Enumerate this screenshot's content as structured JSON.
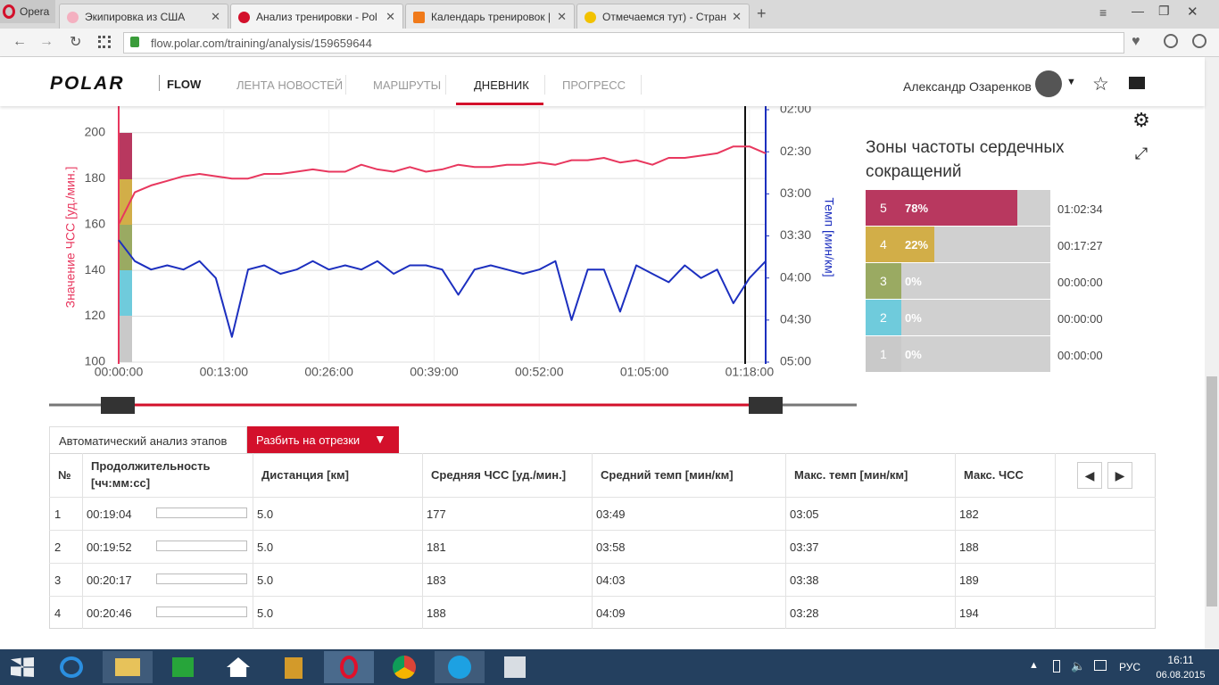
{
  "browser": {
    "menu": "Opera",
    "tabs": [
      "Экипировка из США",
      "Анализ тренировки - Pol",
      "Календарь тренировок |",
      "Отмечаемся тут) - Стран"
    ],
    "url": "flow.polar.com/training/analysis/159659644"
  },
  "nav": {
    "logo": "POLAR",
    "product": "FLOW",
    "items": [
      "ЛЕНТА НОВОСТЕЙ",
      "МАРШРУТЫ",
      "ДНЕВНИК",
      "ПРОГРЕСС"
    ],
    "user": "Александр Озаренков"
  },
  "chart_data": {
    "type": "line",
    "ylabel": "Значение ЧСС [уд./мин.]",
    "y2label": "Темп [мин/км]",
    "x": [
      0,
      2,
      4,
      6,
      8,
      10,
      12,
      14,
      16,
      18,
      20,
      22,
      24,
      26,
      28,
      30,
      32,
      34,
      36,
      38,
      40,
      42,
      44,
      46,
      48,
      50,
      52,
      54,
      56,
      58,
      60,
      62,
      64,
      66,
      68,
      70,
      72,
      74,
      76,
      78,
      80
    ],
    "series": [
      {
        "color": "#e8375e",
        "values": [
          160,
          174,
          177,
          179,
          181,
          182,
          181,
          180,
          180,
          182,
          182,
          183,
          184,
          183,
          183,
          186,
          184,
          183,
          185,
          183,
          184,
          186,
          185,
          185,
          186,
          186,
          187,
          186,
          188,
          188,
          189,
          187,
          188,
          186,
          189,
          189,
          190,
          191,
          194,
          194,
          191
        ]
      },
      {
        "color": "#1c2fbf",
        "axis": "y2",
        "values": [
          3.55,
          3.8,
          3.9,
          3.85,
          3.9,
          3.8,
          4.0,
          4.7,
          3.9,
          3.85,
          3.95,
          3.9,
          3.8,
          3.9,
          3.85,
          3.9,
          3.8,
          3.95,
          3.85,
          3.85,
          3.9,
          4.2,
          3.9,
          3.85,
          3.9,
          3.95,
          3.9,
          3.8,
          4.5,
          3.9,
          3.9,
          4.4,
          3.85,
          3.95,
          4.05,
          3.85,
          4.0,
          3.9,
          4.3,
          4.0,
          3.8
        ]
      }
    ],
    "xlim": [
      0,
      80
    ],
    "xticks": [
      {
        "value": 0,
        "label": "00:00:00"
      },
      {
        "value": 13,
        "label": "00:13:00"
      },
      {
        "value": 26,
        "label": "00:26:00"
      },
      {
        "value": 39,
        "label": "00:39:00"
      },
      {
        "value": 52,
        "label": "00:52:00"
      },
      {
        "value": 65,
        "label": "01:05:00"
      },
      {
        "value": 78,
        "label": "01:18:00"
      }
    ],
    "ylim": [
      100,
      210
    ],
    "yticks": [
      100,
      120,
      140,
      160,
      180,
      200
    ],
    "y2lim": [
      2,
      5
    ],
    "y2_inverted": true,
    "y2ticks": [
      {
        "value": 2,
        "label": "02:00"
      },
      {
        "value": 2.5,
        "label": "02:30"
      },
      {
        "value": 3,
        "label": "03:00"
      },
      {
        "value": 3.5,
        "label": "03:30"
      },
      {
        "value": 4,
        "label": "04:00"
      },
      {
        "value": 4.5,
        "label": "04:30"
      },
      {
        "value": 5,
        "label": "05:00"
      }
    ],
    "grid": true
  },
  "zones": {
    "title": "Зоны частоты сердечных сокращений",
    "rows": [
      {
        "zone": "5",
        "percent": 78,
        "percent_label": "78%",
        "time": "01:02:34",
        "color": "#b8385f"
      },
      {
        "zone": "4",
        "percent": 22,
        "percent_label": "22%",
        "time": "00:17:27",
        "color": "#d2ae48"
      },
      {
        "zone": "3",
        "percent": 0,
        "percent_label": "0%",
        "time": "00:00:00",
        "color": "#9aaa62"
      },
      {
        "zone": "2",
        "percent": 0,
        "percent_label": "0%",
        "time": "00:00:00",
        "color": "#6fcbdc"
      },
      {
        "zone": "1",
        "percent": 0,
        "percent_label": "0%",
        "time": "00:00:00",
        "color": "#c9c9c9"
      }
    ]
  },
  "laps": {
    "tabs": [
      "Автоматический анализ этапов",
      "Разбить на отрезки"
    ],
    "headers": [
      "№",
      "Продолжительность [чч:мм:сс]",
      "Дистанция [км]",
      "Средняя ЧСС [уд./мин.]",
      "Средний темп [мин/км]",
      "Макс. темп [мин/км]",
      "Макс. ЧСС"
    ],
    "rows": [
      [
        "1",
        "00:19:04",
        "5.0",
        "177",
        "03:49",
        "03:05",
        "182"
      ],
      [
        "2",
        "00:19:52",
        "5.0",
        "181",
        "03:58",
        "03:37",
        "188"
      ],
      [
        "3",
        "00:20:17",
        "5.0",
        "183",
        "04:03",
        "03:38",
        "189"
      ],
      [
        "4",
        "00:20:46",
        "5.0",
        "188",
        "04:09",
        "03:28",
        "194"
      ]
    ]
  },
  "taskbar": {
    "lang": "РУС",
    "time": "16:11",
    "date": "06.08.2015"
  }
}
